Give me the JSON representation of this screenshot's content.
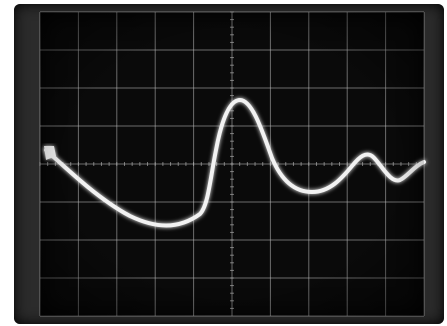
{
  "scene": {
    "subject": "oscilloscope",
    "screen_color": "#0a0a0a",
    "bezel_color": "#2b2b2b",
    "trace_color": "#f2f2f2",
    "graticule_color": "#bdbdbd",
    "graticule": {
      "columns": 10,
      "rows": 8,
      "center_axis_ticks": true
    }
  }
}
